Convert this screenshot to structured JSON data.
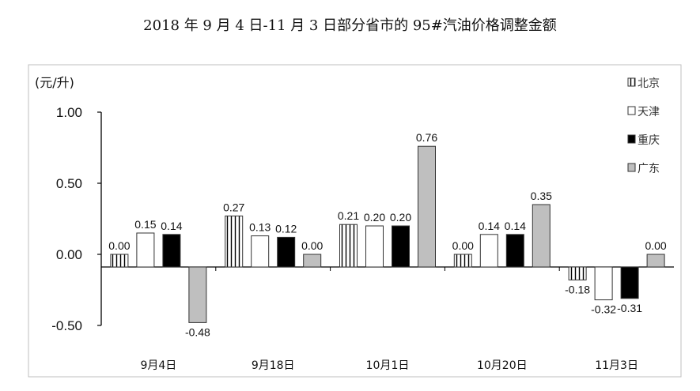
{
  "chart_data": {
    "type": "bar",
    "title": "2018 年 9 月 4 日-11 月 3 日部分省市的 95#汽油价格调整金额",
    "ylabel": "(元/升)",
    "xlabel": "",
    "ylim": [
      -0.5,
      1.0
    ],
    "yticks": [
      "1.00",
      "0.50",
      "0.00",
      "-0.50"
    ],
    "ytick_values": [
      1.0,
      0.5,
      0.0,
      -0.5
    ],
    "categories": [
      "9月4日",
      "9月18日",
      "10月1日",
      "10月20日",
      "11月3日"
    ],
    "series": [
      {
        "name": "北京",
        "style": "vstripe",
        "values": [
          0.0,
          0.27,
          0.21,
          0.0,
          -0.18
        ],
        "labels": [
          "0.00",
          "0.27",
          "0.21",
          "0.00",
          "-0.18"
        ]
      },
      {
        "name": "天津",
        "style": "white",
        "values": [
          0.15,
          0.13,
          0.2,
          0.14,
          -0.32
        ],
        "labels": [
          "0.15",
          "0.13",
          "0.20",
          "0.14",
          "-0.32"
        ]
      },
      {
        "name": "重庆",
        "style": "black",
        "values": [
          0.14,
          0.12,
          0.2,
          0.14,
          -0.31
        ],
        "labels": [
          "0.14",
          "0.12",
          "0.20",
          "0.14",
          "-0.31"
        ]
      },
      {
        "name": "广东",
        "style": "gray",
        "values": [
          -0.48,
          0.0,
          0.76,
          0.35,
          0.0
        ],
        "labels": [
          "-0.48",
          "0.00",
          "0.76",
          "0.35",
          "0.00"
        ]
      }
    ],
    "legend_position": "top-right",
    "grid": false
  },
  "colors": {
    "gray": "#bfbfbf",
    "black": "#000000",
    "white": "#ffffff",
    "stroke": "#333333"
  }
}
